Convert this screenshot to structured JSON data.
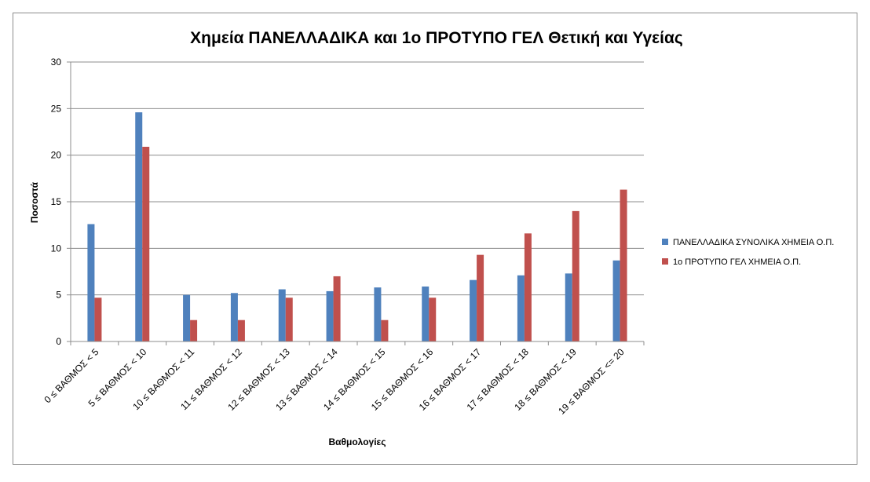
{
  "chart_data": {
    "type": "bar",
    "title": "Χημεία ΠΑΝΕΛΛΑΔΙΚΑ και 1ο ΠΡΟΤΥΠΟ ΓΕΛ Θετική και Υγείας",
    "xlabel": "Βαθμολογίες",
    "ylabel": "Ποσοστά",
    "ylim": [
      0,
      30
    ],
    "yticks": [
      0,
      5,
      10,
      15,
      20,
      25,
      30
    ],
    "grid": true,
    "legend_position": "right",
    "categories": [
      "0 ≤ ΒΑΘΜΟΣ < 5",
      "5 ≤ ΒΑΘΜΟΣ < 10",
      "10 ≤ ΒΑΘΜΟΣ < 11",
      "11 ≤ ΒΑΘΜΟΣ < 12",
      "12 ≤ ΒΑΘΜΟΣ < 13",
      "13 ≤ ΒΑΘΜΟΣ < 14",
      "14 ≤ ΒΑΘΜΟΣ < 15",
      "15 ≤ ΒΑΘΜΟΣ < 16",
      "16 ≤ ΒΑΘΜΟΣ < 17",
      "17 ≤ ΒΑΘΜΟΣ < 18",
      "18 ≤ ΒΑΘΜΟΣ < 19",
      "19 ≤ ΒΑΘΜΟΣ <= 20"
    ],
    "series": [
      {
        "name": "ΠΑΝΕΛΛΑΔΙΚΑ ΣΥΝΟΛΙΚΑ ΧΗΜΕΙΑ Ο.Π.",
        "color": "#4f81bd",
        "values": [
          12.6,
          24.6,
          5.0,
          5.2,
          5.6,
          5.4,
          5.8,
          5.9,
          6.6,
          7.1,
          7.3,
          8.7
        ]
      },
      {
        "name": "1ο ΠΡΟΤΥΠΟ ΓΕΛ ΧΗΜΕΙΑ Ο.Π.",
        "color": "#c0504d",
        "values": [
          4.7,
          20.9,
          2.3,
          2.3,
          4.7,
          7.0,
          2.3,
          4.7,
          9.3,
          11.6,
          14.0,
          16.3
        ]
      }
    ]
  }
}
